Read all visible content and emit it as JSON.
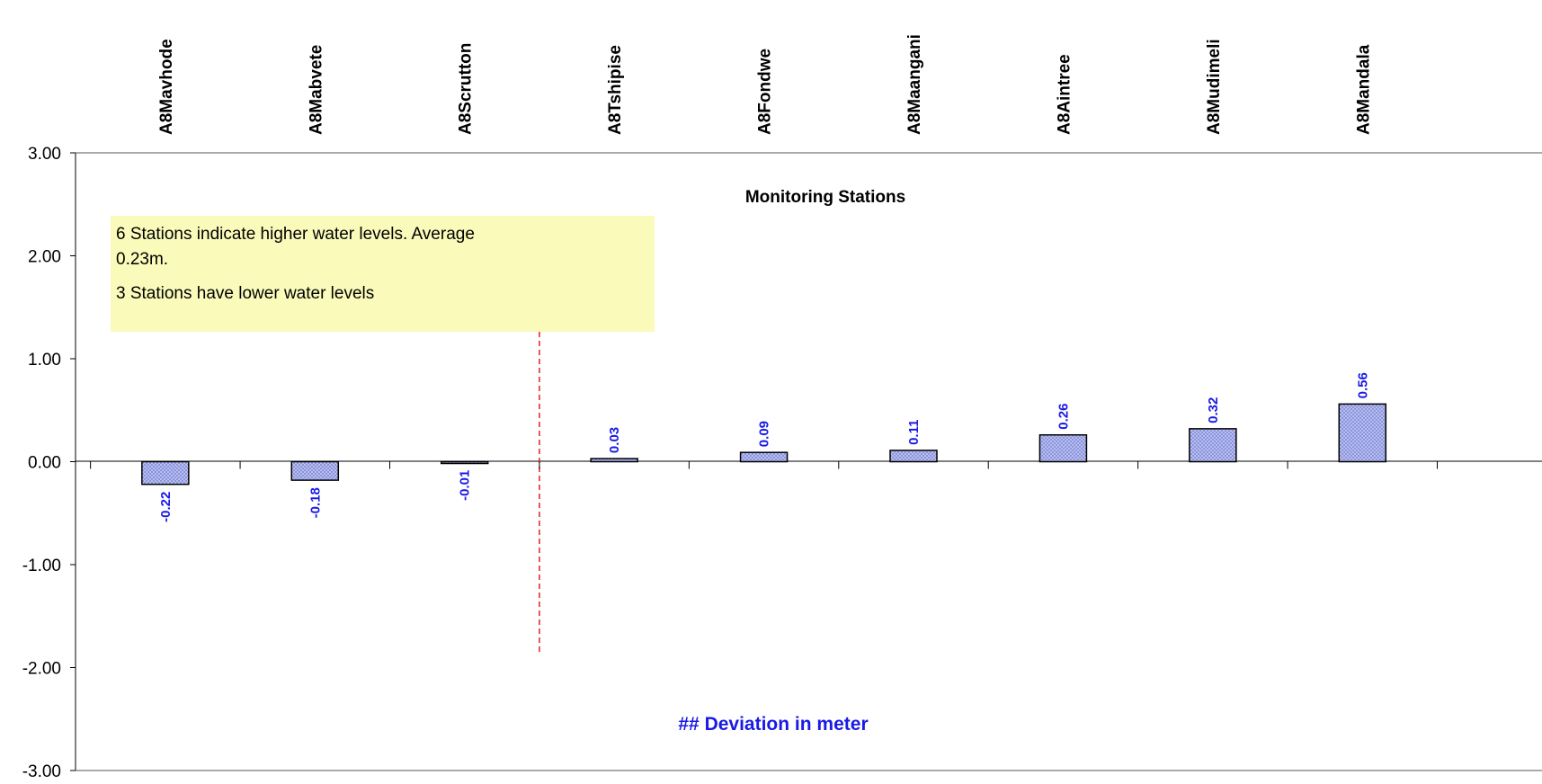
{
  "chart_data": {
    "type": "bar",
    "title": "Monitoring Stations",
    "categories": [
      "A8Mavhode",
      "A8Mabvete",
      "A8Scrutton",
      "A8Tshipise",
      "A8Fondwe",
      "A8Maangani",
      "A8Aintree",
      "A8Mudimeli",
      "A8Mandala"
    ],
    "values": [
      -0.22,
      -0.18,
      -0.01,
      0.03,
      0.09,
      0.11,
      0.26,
      0.32,
      0.56
    ],
    "data_labels": [
      "-0.22",
      "-0.18",
      "-0.01",
      "0.03",
      "0.09",
      "0.11",
      "0.26",
      "0.32",
      "0.56"
    ],
    "ylim": [
      -3,
      3
    ],
    "y_ticks": [
      "3.00",
      "2.00",
      "1.00",
      "0.00",
      "-1.00",
      "-2.00",
      "-3.00"
    ],
    "y_tick_values": [
      3,
      2,
      1,
      0,
      -1,
      -2,
      -3
    ],
    "xlabel": "",
    "ylabel": "",
    "grid": false,
    "annotation_lines": [
      "6 Stations  indicate higher water levels. Average",
      "0.23m.",
      "3 Stations have lower water levels"
    ],
    "divider_after_category": "A8Scrutton",
    "footer_label": "## Deviation in meter",
    "colors": {
      "bar_fill": "#b8bfee",
      "bar_pattern": "#8c94dd",
      "bar_stroke": "#000000",
      "data_label": "#1a1ae6",
      "divider": "#e02020",
      "note_background": "#fafaba",
      "footer_label": "#1a1ae6",
      "axis": "#000000"
    }
  }
}
